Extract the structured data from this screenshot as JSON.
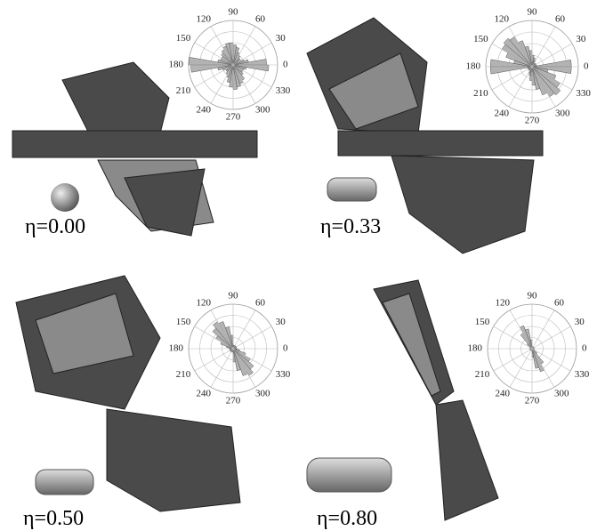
{
  "chart_data": [
    {
      "type": "polar-bar",
      "label": "η=0.00",
      "color": "#b3b3b3",
      "rlim": [
        0,
        1
      ],
      "thetaticks": [
        0,
        30,
        60,
        90,
        120,
        150,
        180,
        210,
        240,
        270,
        300,
        330
      ],
      "values": [
        0.75,
        0.35,
        0.25,
        0.2,
        0.2,
        0.25,
        0.3,
        0.4,
        0.45,
        0.5,
        0.5,
        0.45,
        0.4,
        0.35,
        0.3,
        0.3,
        0.35,
        1.0,
        0.95,
        0.35,
        0.25,
        0.2,
        0.2,
        0.25,
        0.3,
        0.4,
        0.5,
        0.55,
        0.5,
        0.45,
        0.4,
        0.3,
        0.25,
        0.25,
        0.3,
        0.8
      ]
    },
    {
      "type": "polar-bar",
      "label": "η=0.33",
      "color": "#b3b3b3",
      "rlim": [
        0,
        1
      ],
      "thetaticks": [
        0,
        30,
        60,
        90,
        120,
        150,
        180,
        210,
        240,
        270,
        300,
        330
      ],
      "values": [
        0.85,
        0.1,
        0.1,
        0.1,
        0.1,
        0.1,
        0.15,
        0.2,
        0.25,
        0.35,
        0.45,
        0.6,
        0.75,
        0.8,
        0.75,
        0.6,
        0.4,
        0.9,
        0.9,
        0.1,
        0.1,
        0.1,
        0.1,
        0.1,
        0.15,
        0.2,
        0.3,
        0.4,
        0.5,
        0.65,
        0.75,
        0.8,
        0.7,
        0.55,
        0.35,
        0.85
      ]
    },
    {
      "type": "polar-bar",
      "label": "η=0.50",
      "color": "#b3b3b3",
      "rlim": [
        0,
        1
      ],
      "thetaticks": [
        0,
        30,
        60,
        90,
        120,
        150,
        180,
        210,
        240,
        270,
        300,
        330
      ],
      "values": [
        0.08,
        0.08,
        0.08,
        0.08,
        0.08,
        0.08,
        0.08,
        0.08,
        0.08,
        0.3,
        0.5,
        0.65,
        0.7,
        0.6,
        0.45,
        0.3,
        0.15,
        0.08,
        0.08,
        0.08,
        0.08,
        0.08,
        0.08,
        0.08,
        0.08,
        0.08,
        0.08,
        0.3,
        0.5,
        0.65,
        0.7,
        0.6,
        0.45,
        0.3,
        0.15,
        0.08
      ]
    },
    {
      "type": "polar-bar",
      "label": "η=0.80",
      "color": "#b3b3b3",
      "rlim": [
        0,
        1
      ],
      "thetaticks": [
        0,
        30,
        60,
        90,
        120,
        150,
        180,
        210,
        240,
        270,
        300,
        330
      ],
      "values": [
        0.05,
        0.05,
        0.05,
        0.05,
        0.05,
        0.05,
        0.05,
        0.05,
        0.05,
        0.2,
        0.45,
        0.55,
        0.4,
        0.15,
        0.05,
        0.05,
        0.05,
        0.05,
        0.05,
        0.05,
        0.05,
        0.05,
        0.05,
        0.05,
        0.05,
        0.05,
        0.05,
        0.2,
        0.45,
        0.55,
        0.4,
        0.15,
        0.05,
        0.05,
        0.05,
        0.05
      ]
    }
  ]
}
